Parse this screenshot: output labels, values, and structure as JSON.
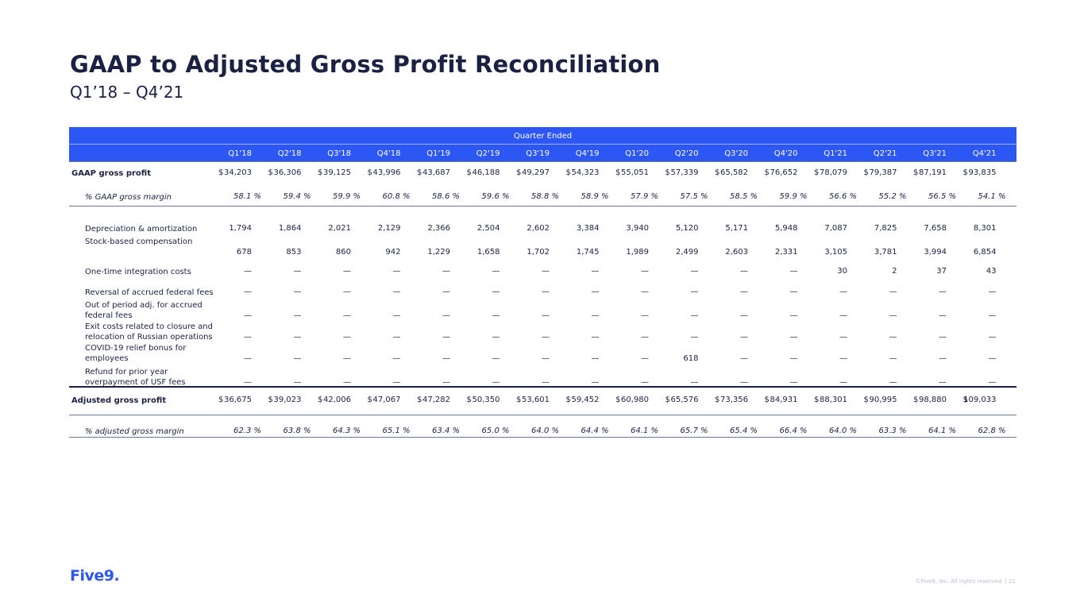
{
  "title": "GAAP to Adjusted Gross Profit Reconciliation",
  "subtitle": "Q1’18 – Q4’21",
  "table": {
    "group_header": "Quarter Ended",
    "quarters": [
      "Q1'18",
      "Q2'18",
      "Q3'18",
      "Q4'18",
      "Q1'19",
      "Q2'19",
      "Q3'19",
      "Q4'19",
      "Q1'20",
      "Q2'20",
      "Q3'20",
      "Q4'20",
      "Q1'21",
      "Q2'21",
      "Q3'21",
      "Q4'21"
    ],
    "rows": [
      {
        "label": "GAAP gross profit",
        "style": "bold",
        "dollar": true,
        "values": [
          "34,203",
          "36,306",
          "39,125",
          "43,996",
          "43,687",
          "46,188",
          "49,297",
          "54,323",
          "55,051",
          "57,339",
          "65,582",
          "76,652",
          "78,079",
          "79,387",
          "87,191",
          "93,835"
        ]
      },
      {
        "label": "% GAAP gross margin",
        "style": "italic",
        "dollar": false,
        "values": [
          "58.1 %",
          "59.4 %",
          "59.9 %",
          "60.8 %",
          "58.6 %",
          "59.6 %",
          "58.8 %",
          "58.9 %",
          "57.9 %",
          "57.5 %",
          "58.5 %",
          "59.9 %",
          "56.6 %",
          "55.2 %",
          "56.5 %",
          "54.1 %"
        ]
      },
      {
        "label": "Depreciation & amortization",
        "style": "normal",
        "dollar": false,
        "values": [
          "1,794",
          "1,864",
          "2,021",
          "2,129",
          "2,366",
          "2,504",
          "2,602",
          "3,384",
          "3,940",
          "5,120",
          "5,171",
          "5,948",
          "7,087",
          "7,825",
          "7,658",
          "8,301"
        ]
      },
      {
        "label": "Stock-based compensation",
        "style": "normal",
        "dollar": false,
        "values": [
          "678",
          "853",
          "860",
          "942",
          "1,229",
          "1,658",
          "1,702",
          "1,745",
          "1,989",
          "2,499",
          "2,603",
          "2,331",
          "3,105",
          "3,781",
          "3,994",
          "6,854"
        ]
      },
      {
        "label": "One-time integration costs",
        "style": "normal",
        "dollar": false,
        "values": [
          "—",
          "—",
          "—",
          "—",
          "—",
          "—",
          "—",
          "—",
          "—",
          "—",
          "—",
          "—",
          "30",
          "2",
          "37",
          "43"
        ]
      },
      {
        "label": "Reversal of accrued federal fees",
        "style": "normal",
        "dollar": false,
        "values": [
          "—",
          "—",
          "—",
          "—",
          "—",
          "—",
          "—",
          "—",
          "—",
          "—",
          "—",
          "—",
          "—",
          "—",
          "—",
          "—"
        ]
      },
      {
        "label": "Out of period adj. for accrued federal fees",
        "style": "normal",
        "dollar": false,
        "values": [
          "—",
          "—",
          "—",
          "—",
          "—",
          "—",
          "—",
          "—",
          "—",
          "—",
          "—",
          "—",
          "—",
          "—",
          "—",
          "—"
        ]
      },
      {
        "label": "Exit costs related to closure and relocation of Russian operations",
        "style": "normal",
        "dollar": false,
        "values": [
          "—",
          "—",
          "—",
          "—",
          "—",
          "—",
          "—",
          "—",
          "—",
          "—",
          "—",
          "—",
          "—",
          "—",
          "—",
          "—"
        ]
      },
      {
        "label": "COVID-19 relief bonus for employees",
        "style": "normal",
        "dollar": false,
        "values": [
          "—",
          "—",
          "—",
          "—",
          "—",
          "—",
          "—",
          "—",
          "—",
          "618",
          "—",
          "—",
          "—",
          "—",
          "—",
          "—"
        ]
      },
      {
        "label": "Refund for prior year overpayment of USF fees",
        "style": "normal",
        "dollar": false,
        "values": [
          "—",
          "—",
          "—",
          "—",
          "—",
          "—",
          "—",
          "—",
          "—",
          "—",
          "—",
          "—",
          "—",
          "—",
          "—",
          "—"
        ]
      },
      {
        "label": "Adjusted gross profit",
        "style": "bold",
        "dollar": true,
        "values": [
          "36,675",
          "39,023",
          "42,006",
          "47,067",
          "47,282",
          "50,350",
          "53,601",
          "59,452",
          "60,980",
          "65,576",
          "73,356",
          "84,931",
          "88,301",
          "90,995",
          "98,880",
          "109,033"
        ]
      },
      {
        "label": "% adjusted gross margin",
        "style": "italic",
        "dollar": false,
        "values": [
          "62.3 %",
          "63.8 %",
          "64.3 %",
          "65.1 %",
          "63.4 %",
          "65.0 %",
          "64.0 %",
          "64.4 %",
          "64.1 %",
          "65.7 %",
          "65.4 %",
          "66.4 %",
          "64.0 %",
          "63.3 %",
          "64.1 %",
          "62.8 %"
        ]
      }
    ]
  },
  "logo": "Five9.",
  "footer": "©Five9, Inc. All rights reserved. | 21"
}
